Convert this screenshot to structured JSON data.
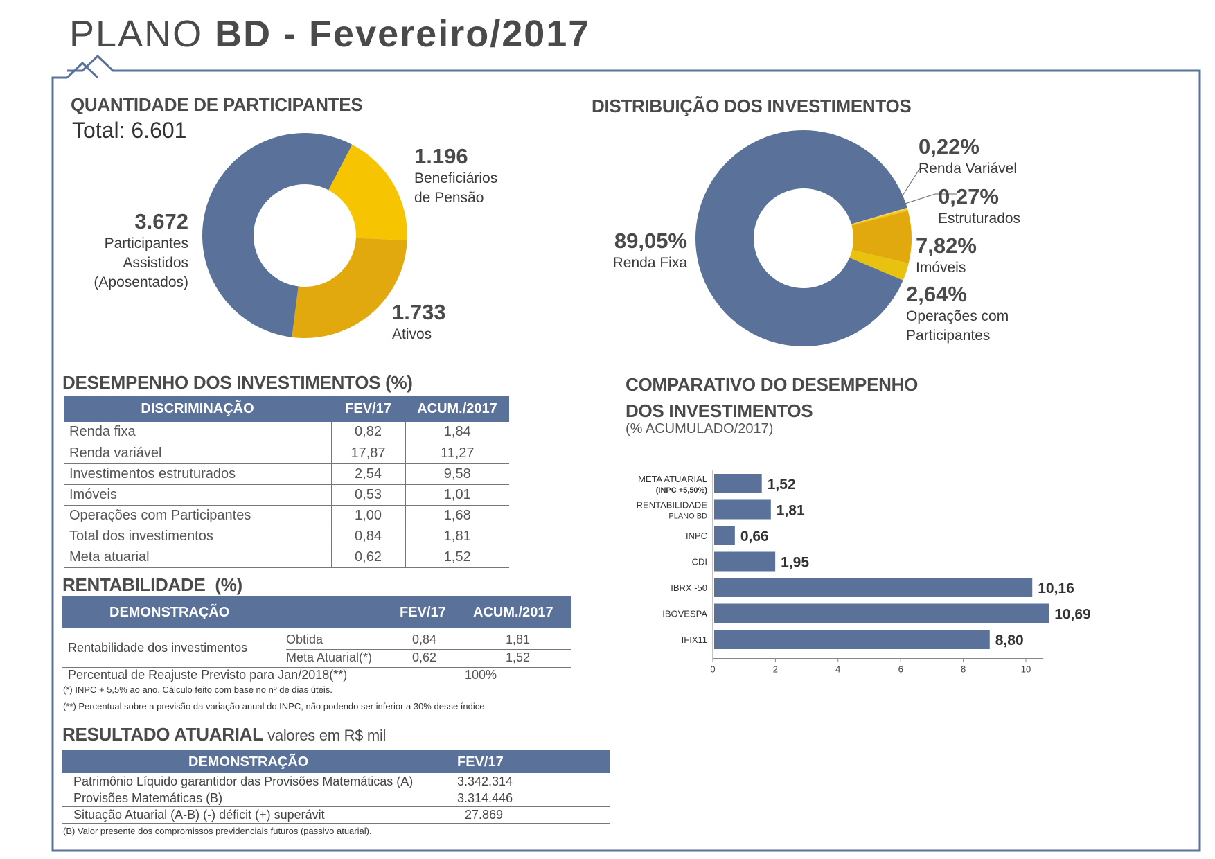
{
  "page": {
    "title_light": "PLANO ",
    "title_bold": "BD - Fevereiro/2017"
  },
  "colors": {
    "blue": "#5a7199",
    "yellow": "#f6c400",
    "gold": "#e2a90e",
    "light_yellow": "#f1d36a",
    "frame": "#5a7199"
  },
  "participantes": {
    "title": "QUANTIDADE DE PARTICIPANTES",
    "total": "Total: 6.601",
    "assistidos_value": "3.672",
    "assistidos_label": [
      "Participantes",
      "Assistidos",
      "(Aposentados)"
    ],
    "beneficiarios_value": "1.196",
    "beneficiarios_label": [
      "Beneficiários",
      "de Pensão"
    ],
    "ativos_value": "1.733",
    "ativos_label": "Ativos"
  },
  "distribuicao": {
    "title": "DISTRIBUIÇÃO DOS INVESTIMENTOS",
    "renda_fixa_value": "89,05%",
    "renda_fixa_label": "Renda Fixa",
    "renda_variavel_value": "0,22%",
    "renda_variavel_label": "Renda Variável",
    "estruturados_value": "0,27%",
    "estruturados_label": "Estruturados",
    "imoveis_value": "7,82%",
    "imoveis_label": "Imóveis",
    "operacoes_value": "2,64%",
    "operacoes_label": [
      "Operações com",
      "Participantes"
    ]
  },
  "desempenho": {
    "title": "DESEMPENHO DOS INVESTIMENTOS (%)",
    "headers": [
      "DISCRIMINAÇÃO",
      "FEV/17",
      "ACUM./2017"
    ],
    "rows": [
      [
        "Renda fixa",
        "0,82",
        "1,84"
      ],
      [
        "Renda variável",
        "17,87",
        "11,27"
      ],
      [
        "Investimentos estruturados",
        "2,54",
        "9,58"
      ],
      [
        "Imóveis",
        "0,53",
        "1,01"
      ],
      [
        "Operações com Participantes",
        "1,00",
        "1,68"
      ],
      [
        "Total dos investimentos",
        "0,84",
        "1,81"
      ],
      [
        "Meta atuarial",
        "0,62",
        "1,52"
      ]
    ]
  },
  "rentabilidade": {
    "title": "RENTABILIDADE",
    "title_unit": "(%)",
    "headers": [
      "DEMONSTRAÇÃO",
      "FEV/17",
      "ACUM./2017"
    ],
    "row_label": "Rentabilidade dos investimentos",
    "obtida_label": "Obtida",
    "obtida_fev": "0,84",
    "obtida_acum": "1,81",
    "meta_label": "Meta Atuarial(*)",
    "meta_fev": "0,62",
    "meta_acum": "1,52",
    "reajuste_label": "Percentual de Reajuste Previsto para Jan/2018(**)",
    "reajuste_value": "100%",
    "note1": "(*) INPC + 5,5% ao ano. Cálculo feito com base no nº de dias úteis.",
    "note2": "(**) Percentual sobre a previsão da variação anual do INPC, não podendo ser inferior a 30% desse índice"
  },
  "resultado": {
    "title": "RESULTADO ATUARIAL",
    "subtitle": "valores em R$ mil",
    "headers": [
      "DEMONSTRAÇÃO",
      "FEV/17"
    ],
    "rows": [
      [
        "Patrimônio Líquido garantidor das Provisões Matemáticas (A)",
        "3.342.314"
      ],
      [
        "Provisões Matemáticas (B)",
        "3.314.446"
      ],
      [
        "Situação Atuarial (A-B) (-) déficit (+) superávit",
        "27.869"
      ]
    ],
    "note": "(B) Valor presente dos compromissos previdenciais futuros (passivo atuarial)."
  },
  "comparativo": {
    "title_line1": "COMPARATIVO DO DESEMPENHO",
    "title_line2": "DOS INVESTIMENTOS",
    "subtitle": "(% ACUMULADO/2017)"
  },
  "chart_data": [
    {
      "type": "pie",
      "title": "QUANTIDADE DE PARTICIPANTES",
      "categories": [
        "Participantes Assistidos (Aposentados)",
        "Beneficiários de Pensão",
        "Ativos"
      ],
      "values": [
        3672,
        1196,
        1733
      ],
      "colors": [
        "#5a7199",
        "#f6c400",
        "#e2a90e"
      ]
    },
    {
      "type": "pie",
      "title": "DISTRIBUIÇÃO DOS INVESTIMENTOS",
      "categories": [
        "Renda Fixa",
        "Renda Variável",
        "Estruturados",
        "Imóveis",
        "Operações com Participantes"
      ],
      "values": [
        89.05,
        0.22,
        0.27,
        7.82,
        2.64
      ],
      "colors": [
        "#5a7199",
        "#f1d36a",
        "#f6c400",
        "#e2a90e",
        "#e8c20f"
      ]
    },
    {
      "type": "bar",
      "orientation": "horizontal",
      "title": "COMPARATIVO DO DESEMPENHO DOS INVESTIMENTOS",
      "subtitle": "(% ACUMULADO/2017)",
      "categories": [
        [
          "META ATUARIAL",
          "(INPC +5,50%)"
        ],
        [
          "RENTABILIDADE",
          "PLANO BD"
        ],
        [
          "INPC"
        ],
        [
          "CDI"
        ],
        [
          "IBRX -50"
        ],
        [
          "IBOVESPA"
        ],
        [
          "IFIX11"
        ]
      ],
      "values": [
        1.52,
        1.81,
        0.66,
        1.95,
        10.16,
        10.69,
        8.8
      ],
      "value_labels": [
        "1,52",
        "1,81",
        "0,66",
        "1,95",
        "10,16",
        "10,69",
        "8,80"
      ],
      "xlim": [
        0,
        10.69
      ],
      "xticks": [
        "0",
        "2",
        "4",
        "6",
        "8",
        "10"
      ],
      "xtick_values": [
        0,
        2,
        4,
        6,
        8,
        10
      ]
    }
  ]
}
